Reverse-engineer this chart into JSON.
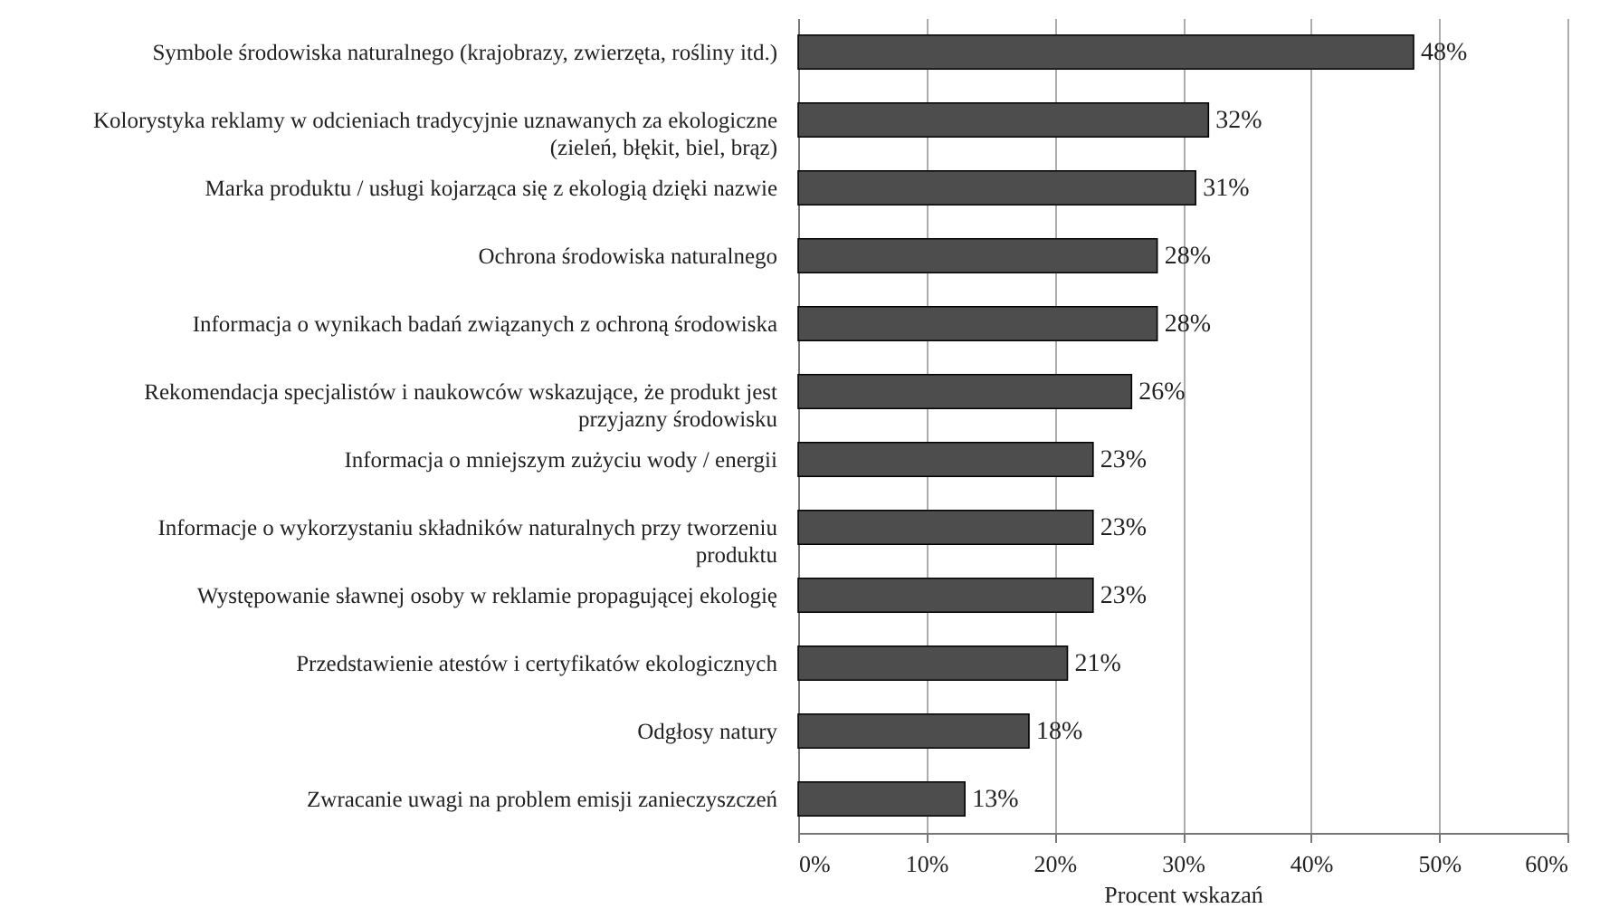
{
  "chart_data": {
    "type": "bar",
    "orientation": "horizontal",
    "xlabel": "Procent wskazań",
    "categories": [
      "Symbole środowiska naturalnego (krajobrazy, zwierzęta, rośliny itd.)",
      "Kolorystyka reklamy w odcieniach tradycyjnie uznawanych za ekologiczne (zieleń, błękit, biel, brąz)",
      "Marka produktu / usługi kojarząca się z ekologią dzięki nazwie",
      "Ochrona środowiska naturalnego",
      "Informacja o wynikach badań związanych z ochroną środowiska",
      "Rekomendacja specjalistów i naukowców wskazujące, że produkt jest przyjazny środowisku",
      "Informacja o mniejszym zużyciu wody / energii",
      "Informacje o wykorzystaniu składników naturalnych przy tworzeniu produktu",
      "Występowanie sławnej osoby w reklamie propagującej ekologię",
      "Przedstawienie atestów i certyfikatów ekologicznych",
      "Odgłosy natury",
      "Zwracanie uwagi na problem emisji zanieczyszczeń"
    ],
    "values": [
      48,
      32,
      31,
      28,
      28,
      26,
      23,
      23,
      23,
      21,
      18,
      13
    ],
    "value_labels": [
      "48%",
      "32%",
      "31%",
      "28%",
      "28%",
      "26%",
      "23%",
      "23%",
      "23%",
      "21%",
      "18%",
      "13%"
    ],
    "color": "#4d4d4d",
    "xlim": [
      0,
      60
    ],
    "xticks": [
      {
        "value": 0,
        "label": "0%"
      },
      {
        "value": 10,
        "label": "10%"
      },
      {
        "value": 20,
        "label": "20%"
      },
      {
        "value": 30,
        "label": "30%"
      },
      {
        "value": 40,
        "label": "40%"
      },
      {
        "value": 50,
        "label": "50%"
      },
      {
        "value": 60,
        "label": "60%"
      }
    ],
    "grid": "x"
  }
}
